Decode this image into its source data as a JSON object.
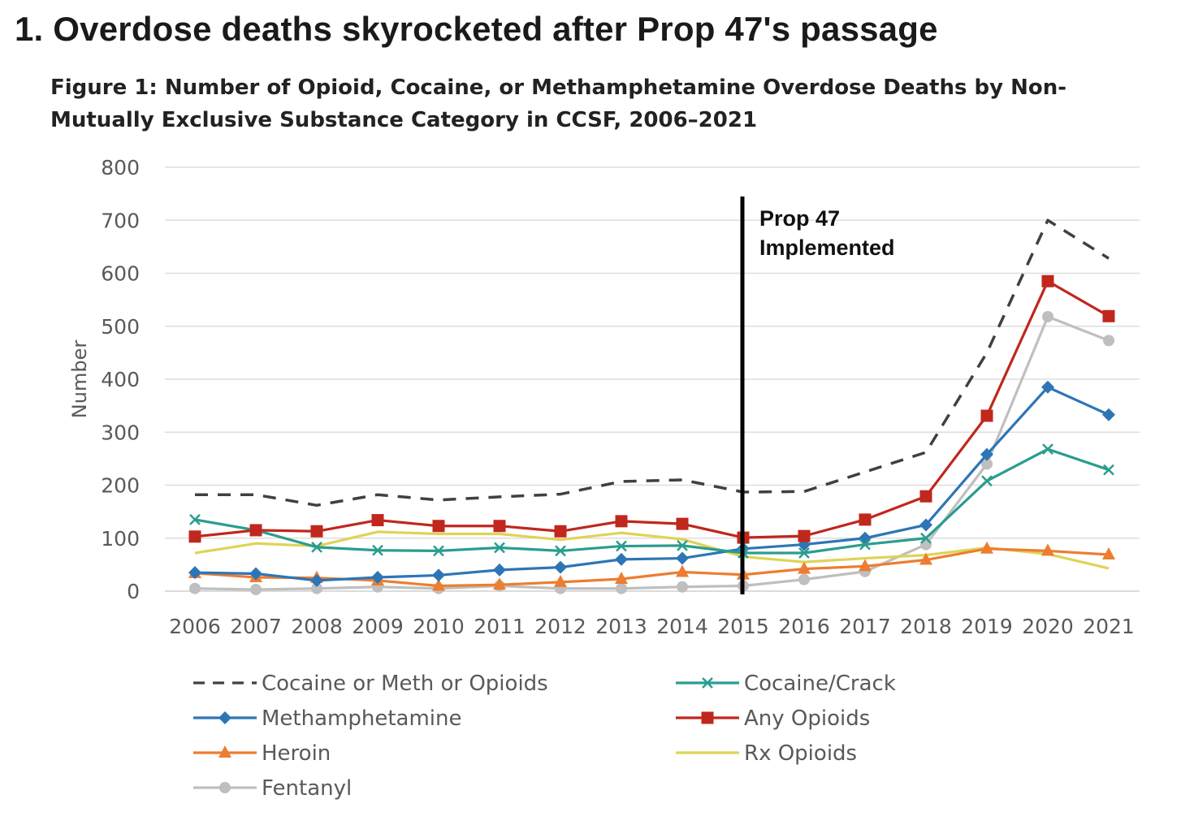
{
  "headline": "1. Overdose deaths skyrocketed after Prop 47's passage",
  "chart_data": {
    "type": "line",
    "title": "Figure 1: Number of Opioid, Cocaine, or Methamphetamine Overdose Deaths by Non-Mutually Exclusive Substance Category in CCSF, 2006–2021",
    "xlabel": "",
    "ylabel": "Number",
    "ylim": [
      0,
      800
    ],
    "yticks": [
      0,
      100,
      200,
      300,
      400,
      500,
      600,
      700,
      800
    ],
    "grid": true,
    "legend_position": "bottom",
    "categories": [
      "2006",
      "2007",
      "2008",
      "2009",
      "2010",
      "2011",
      "2012",
      "2013",
      "2014",
      "2015",
      "2016",
      "2017",
      "2018",
      "2019",
      "2020",
      "2021"
    ],
    "annotation": {
      "x": "2015",
      "text_lines": [
        "Prop 47",
        "Implemented"
      ]
    },
    "series": [
      {
        "name": "Cocaine or Meth or Opioids",
        "color": "#404040",
        "marker": "none",
        "dashed": true,
        "values": [
          182,
          182,
          162,
          182,
          172,
          178,
          183,
          207,
          210,
          187,
          188,
          225,
          262,
          450,
          700,
          628
        ]
      },
      {
        "name": "Cocaine/Crack",
        "color": "#2a9d8f",
        "marker": "x",
        "values": [
          135,
          115,
          83,
          77,
          76,
          82,
          76,
          85,
          86,
          72,
          72,
          88,
          100,
          208,
          268,
          229
        ]
      },
      {
        "name": "Methamphetamine",
        "color": "#2e75b6",
        "marker": "diamond",
        "values": [
          35,
          33,
          20,
          26,
          30,
          40,
          45,
          60,
          62,
          80,
          88,
          100,
          125,
          258,
          385,
          333
        ]
      },
      {
        "name": "Any Opioids",
        "color": "#c0271d",
        "marker": "square",
        "values": [
          103,
          115,
          113,
          134,
          123,
          123,
          113,
          132,
          127,
          101,
          104,
          135,
          179,
          331,
          585,
          519
        ]
      },
      {
        "name": "Heroin",
        "color": "#ed7d31",
        "marker": "triangle",
        "values": [
          34,
          26,
          25,
          20,
          10,
          12,
          17,
          23,
          36,
          31,
          42,
          47,
          59,
          80,
          76,
          69
        ]
      },
      {
        "name": "Rx Opioids",
        "color": "#dfd356",
        "marker": "none",
        "values": [
          72,
          90,
          85,
          112,
          108,
          108,
          97,
          110,
          98,
          65,
          55,
          62,
          68,
          82,
          70,
          43
        ]
      },
      {
        "name": "Fentanyl",
        "color": "#bfbfbf",
        "marker": "circle",
        "values": [
          5,
          3,
          5,
          8,
          5,
          10,
          5,
          5,
          8,
          10,
          22,
          37,
          88,
          240,
          518,
          473
        ]
      }
    ]
  }
}
